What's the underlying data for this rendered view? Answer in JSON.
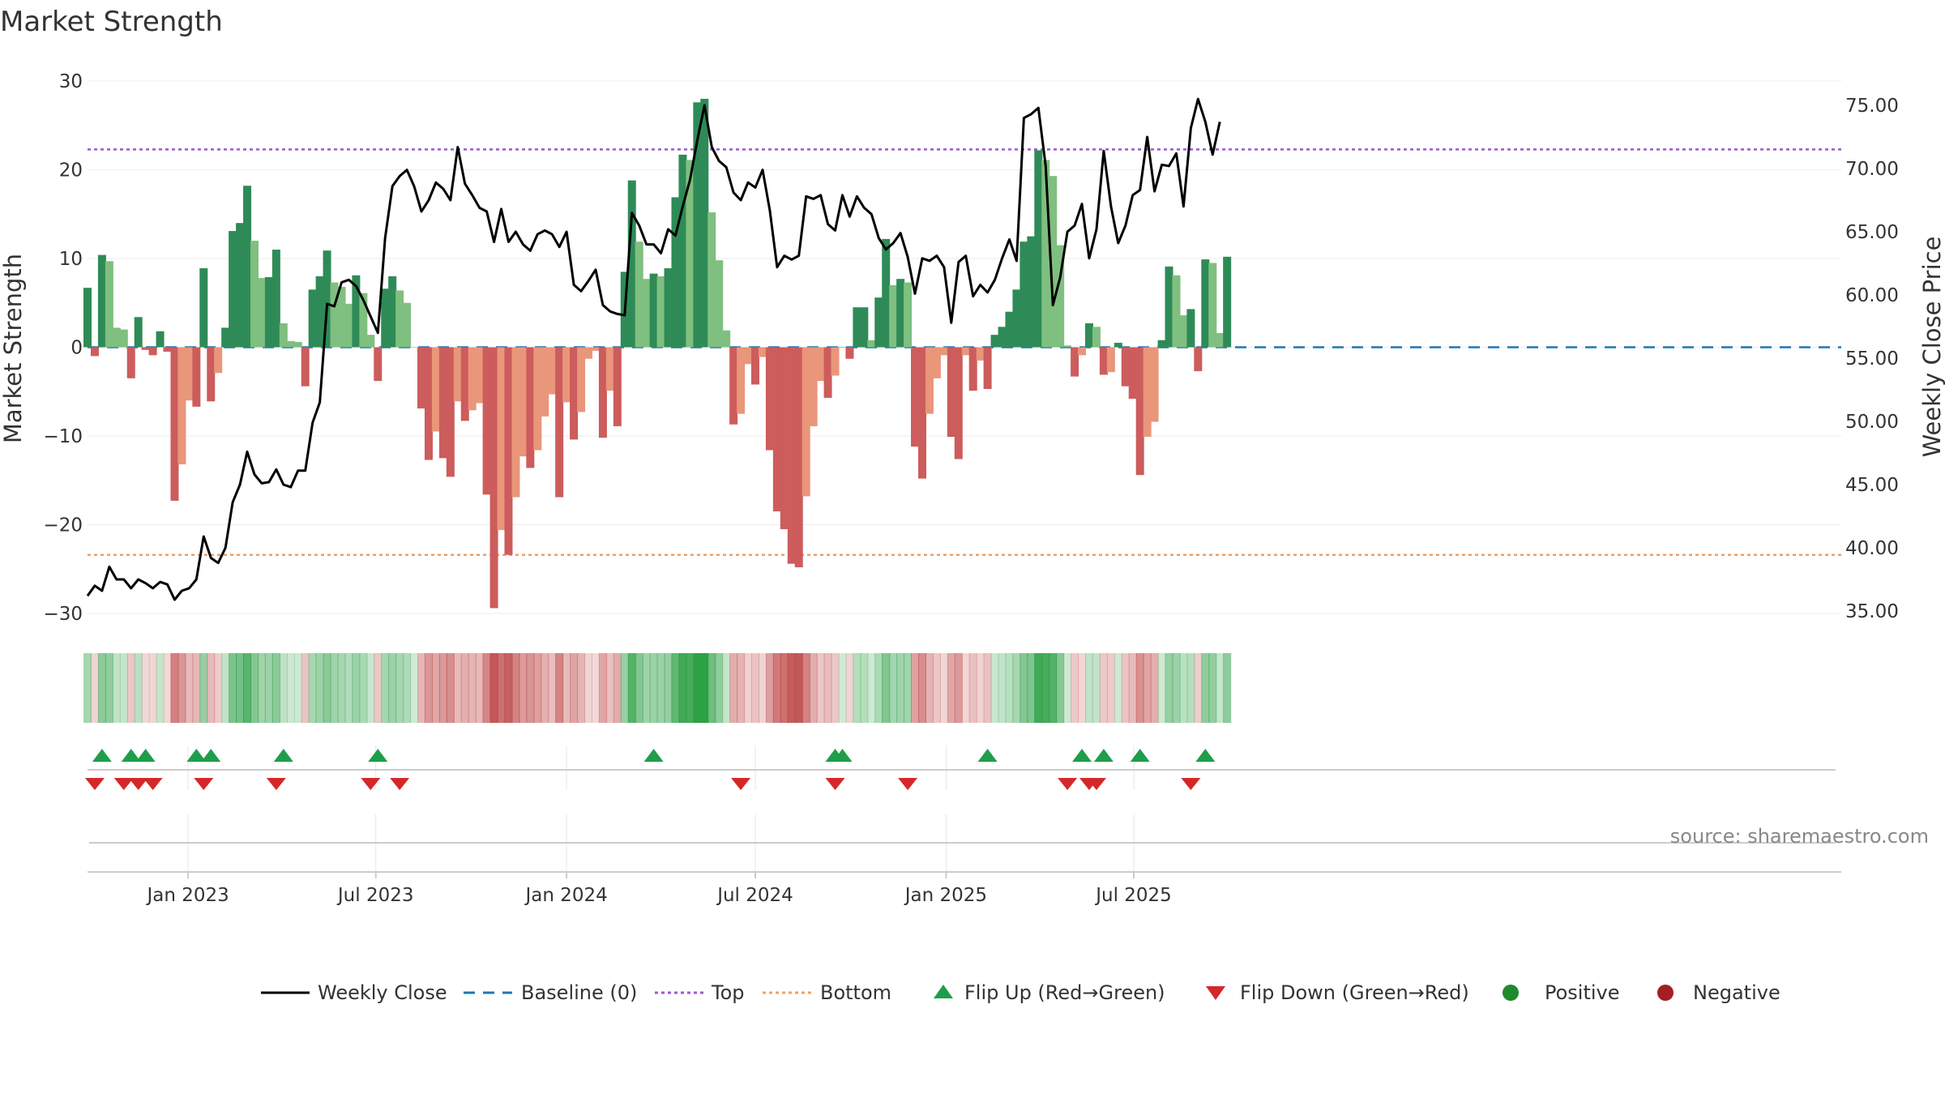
{
  "chart_data": {
    "type": "bar",
    "title": "Market Strength",
    "ylabel_left": "Market Strength",
    "ylabel_right": "Weekly Close Price",
    "source": "source: sharemaestro.com",
    "x_start": "2022-09-26",
    "week_step_days": 7,
    "ylim_left": [
      -30,
      30
    ],
    "ylim_right": [
      35,
      75
    ],
    "yticks_left": [
      {
        "value": 30,
        "label": "30"
      },
      {
        "value": 20,
        "label": "20"
      },
      {
        "value": 10,
        "label": "10"
      },
      {
        "value": 0,
        "label": "0"
      },
      {
        "value": -10,
        "label": "−10"
      },
      {
        "value": -20,
        "label": "−20"
      },
      {
        "value": -30,
        "label": "−30"
      }
    ],
    "yticks_right": [
      {
        "value": 75,
        "label": "75.00"
      },
      {
        "value": 70,
        "label": "70.00"
      },
      {
        "value": 65,
        "label": "65.00"
      },
      {
        "value": 60,
        "label": "60.00"
      },
      {
        "value": 55,
        "label": "55.00"
      },
      {
        "value": 50,
        "label": "50.00"
      },
      {
        "value": 45,
        "label": "45.00"
      },
      {
        "value": 40,
        "label": "40.00"
      },
      {
        "value": 35,
        "label": "35.00"
      }
    ],
    "xticks": [
      {
        "date": "2023-01-01",
        "label": "Jan 2023"
      },
      {
        "date": "2023-07-01",
        "label": "Jul 2023"
      },
      {
        "date": "2024-01-01",
        "label": "Jan 2024"
      },
      {
        "date": "2024-07-01",
        "label": "Jul 2024"
      },
      {
        "date": "2025-01-01",
        "label": "Jan 2025"
      },
      {
        "date": "2025-07-01",
        "label": "Jul 2025"
      }
    ],
    "top_level": 22.3,
    "bottom_level": -23.4,
    "strength": [
      6.7,
      -1.0,
      10.4,
      9.7,
      2.2,
      2.0,
      -3.5,
      3.4,
      -0.3,
      -0.9,
      1.8,
      -0.5,
      -17.3,
      -13.2,
      -6.0,
      -6.7,
      8.9,
      -6.1,
      -2.9,
      2.2,
      13.1,
      14.0,
      18.2,
      12.0,
      7.8,
      7.9,
      11.0,
      2.7,
      0.7,
      0.6,
      -4.4,
      6.5,
      8.0,
      10.9,
      7.3,
      6.8,
      4.9,
      8.1,
      6.1,
      1.4,
      -3.8,
      6.6,
      8.0,
      6.4,
      5.0,
      0.0,
      -6.9,
      -12.7,
      -9.5,
      -12.5,
      -14.6,
      -6.1,
      -8.3,
      -7.1,
      -6.3,
      -16.6,
      -29.4,
      -20.6,
      -23.4,
      -16.9,
      -12.3,
      -13.6,
      -11.6,
      -7.8,
      -5.3,
      -16.9,
      -6.2,
      -10.4,
      -7.3,
      -1.3,
      -0.4,
      -10.2,
      -4.9,
      -8.9,
      8.5,
      18.8,
      11.9,
      7.7,
      8.3,
      8.0,
      8.9,
      16.9,
      21.7,
      21.1,
      27.6,
      28.0,
      15.2,
      9.8,
      1.9,
      -8.7,
      -7.5,
      -1.9,
      -4.2,
      -1.1,
      -11.6,
      -18.5,
      -20.5,
      -24.4,
      -24.8,
      -16.8,
      -8.9,
      -3.8,
      -5.7,
      -3.2,
      0.0,
      -1.3,
      4.5,
      4.5,
      0.8,
      5.6,
      12.2,
      7.0,
      7.7,
      7.3,
      -11.2,
      -14.8,
      -7.5,
      -3.5,
      -0.9,
      -10.1,
      -12.6,
      -0.9,
      -4.9,
      -1.5,
      -4.7,
      1.4,
      2.3,
      4.0,
      6.5,
      11.9,
      12.5,
      22.2,
      21.1,
      19.3,
      11.5,
      0.2,
      -3.3,
      -0.9,
      2.7,
      2.3,
      -3.1,
      -2.8,
      0.5,
      -4.4,
      -5.8,
      -14.4,
      -10.1,
      -8.4,
      0.8,
      9.1,
      8.1,
      3.6,
      4.3,
      -2.7,
      9.9,
      9.5,
      1.6,
      10.2
    ],
    "close": [
      36.2,
      37.0,
      36.6,
      38.5,
      37.5,
      37.5,
      36.8,
      37.5,
      37.2,
      36.8,
      37.3,
      37.1,
      35.9,
      36.6,
      36.8,
      37.5,
      40.9,
      39.2,
      38.8,
      40.0,
      43.6,
      45.0,
      47.6,
      45.8,
      45.1,
      45.2,
      46.2,
      45.0,
      44.8,
      46.1,
      46.1,
      49.9,
      51.5,
      59.3,
      59.1,
      61.0,
      61.2,
      60.7,
      59.6,
      58.3,
      57.0,
      64.5,
      68.6,
      69.4,
      69.9,
      68.6,
      66.6,
      67.5,
      68.9,
      68.4,
      67.5,
      71.7,
      68.8,
      67.9,
      66.9,
      66.6,
      64.2,
      66.8,
      64.2,
      65.0,
      64.0,
      63.5,
      64.8,
      65.1,
      64.8,
      63.8,
      65.0,
      60.8,
      60.3,
      61.1,
      62.0,
      59.2,
      58.7,
      58.5,
      58.4,
      66.5,
      65.5,
      64.0,
      64.0,
      63.3,
      65.2,
      64.7,
      67.0,
      69.1,
      72.2,
      75.0,
      71.7,
      70.6,
      70.1,
      68.1,
      67.5,
      68.9,
      68.5,
      69.9,
      66.7,
      62.2,
      63.1,
      62.8,
      63.1,
      67.8,
      67.6,
      67.9,
      65.6,
      65.1,
      67.9,
      66.2,
      67.8,
      66.9,
      66.4,
      64.5,
      63.6,
      64.1,
      64.9,
      63.0,
      60.1,
      62.9,
      62.7,
      63.1,
      62.2,
      57.8,
      62.6,
      63.1,
      59.9,
      60.8,
      60.2,
      61.2,
      62.9,
      64.4,
      62.7,
      74.0,
      74.3,
      74.8,
      70.2,
      59.2,
      61.4,
      65.0,
      65.5,
      67.2,
      62.9,
      65.2,
      71.4,
      67.0,
      64.1,
      65.5,
      67.9,
      68.3,
      72.5,
      68.2,
      70.3,
      70.2,
      71.2,
      67.0,
      73.2,
      75.5,
      73.7,
      71.1,
      73.7
    ],
    "flip_up_dates": [
      "2022-10-10",
      "2022-11-07",
      "2022-11-21",
      "2023-01-09",
      "2023-01-23",
      "2023-04-03",
      "2023-07-03",
      "2024-03-25",
      "2024-09-16",
      "2024-09-23",
      "2025-02-10",
      "2025-05-12",
      "2025-06-02",
      "2025-07-07",
      "2025-09-08"
    ],
    "flip_down_dates": [
      "2022-10-03",
      "2022-10-31",
      "2022-11-14",
      "2022-11-28",
      "2023-01-16",
      "2023-03-27",
      "2023-06-26",
      "2023-07-24",
      "2024-06-17",
      "2024-09-16",
      "2024-11-25",
      "2025-04-28",
      "2025-05-19",
      "2025-05-26",
      "2025-08-25"
    ],
    "legend": [
      {
        "label": "Weekly Close",
        "kind": "line",
        "color": "#000000"
      },
      {
        "label": "Baseline (0)",
        "kind": "dash",
        "color": "#1f77b4"
      },
      {
        "label": "Top",
        "kind": "dot",
        "color": "#9b59d0"
      },
      {
        "label": "Bottom",
        "kind": "dot",
        "color": "#f0a060"
      },
      {
        "label": "Flip Up (Red→Green)",
        "kind": "tri-up",
        "color": "#1e9e4a"
      },
      {
        "label": "Flip Down (Green→Red)",
        "kind": "tri-down",
        "color": "#d62728"
      },
      {
        "label": "Positive",
        "kind": "dot-marker",
        "color": "#1f8a2c"
      },
      {
        "label": "Negative",
        "kind": "dot-marker",
        "color": "#a31f24"
      }
    ],
    "colors": {
      "pos_strong": "#2e8b57",
      "pos_weak": "#7fbf7f",
      "neg_strong": "#cd5c5c",
      "neg_weak": "#e9967a",
      "line": "#000000",
      "baseline": "#1f77b4",
      "top": "#9b59d0",
      "bottom": "#f0a060",
      "flip_up": "#1e9e4a",
      "flip_down": "#d62728"
    }
  }
}
